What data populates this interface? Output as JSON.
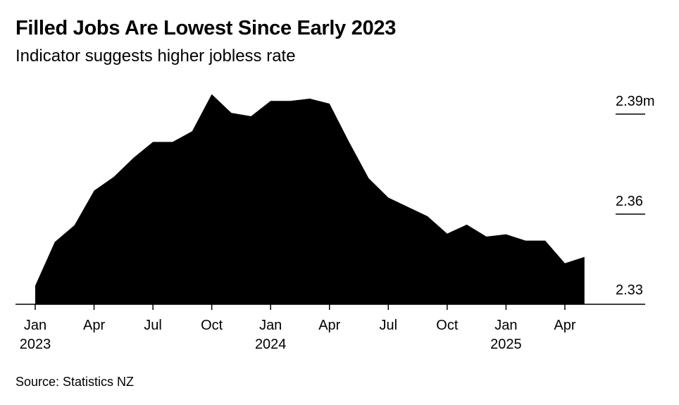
{
  "title": "Filled Jobs Are Lowest Since Early 2023",
  "subtitle": "Indicator suggests higher jobless rate",
  "source": "Source: Statistics NZ",
  "colors": {
    "area": "#000000",
    "axis": "#000000",
    "background": "#ffffff"
  },
  "chart_data": {
    "type": "area",
    "title": "Filled Jobs Are Lowest Since Early 2023",
    "subtitle": "Indicator suggests higher jobless rate",
    "xlabel": "",
    "ylabel": "",
    "ylim": [
      2.33,
      2.39
    ],
    "yticks": [
      {
        "value": 2.39,
        "label": "2.39m"
      },
      {
        "value": 2.36,
        "label": "2.36"
      },
      {
        "value": 2.33,
        "label": "2.33"
      }
    ],
    "xticks": [
      {
        "date": "2023-01",
        "month": "Jan",
        "year": "2023"
      },
      {
        "date": "2023-04",
        "month": "Apr",
        "year": ""
      },
      {
        "date": "2023-07",
        "month": "Jul",
        "year": ""
      },
      {
        "date": "2023-10",
        "month": "Oct",
        "year": ""
      },
      {
        "date": "2024-01",
        "month": "Jan",
        "year": "2024"
      },
      {
        "date": "2024-04",
        "month": "Apr",
        "year": ""
      },
      {
        "date": "2024-07",
        "month": "Jul",
        "year": ""
      },
      {
        "date": "2024-10",
        "month": "Oct",
        "year": ""
      },
      {
        "date": "2025-01",
        "month": "Jan",
        "year": "2025"
      },
      {
        "date": "2025-04",
        "month": "Apr",
        "year": ""
      }
    ],
    "grid": false,
    "legend": "none",
    "series": [
      {
        "x": [
          "2023-01",
          "2023-02",
          "2023-03",
          "2023-04",
          "2023-05",
          "2023-06",
          "2023-07",
          "2023-08",
          "2023-09",
          "2023-10",
          "2023-11",
          "2023-12",
          "2024-01",
          "2024-02",
          "2024-03",
          "2024-04",
          "2024-05",
          "2024-06",
          "2024-07",
          "2024-08",
          "2024-09",
          "2024-10",
          "2024-11",
          "2024-12",
          "2025-01",
          "2025-02",
          "2025-03",
          "2025-04",
          "2025-05"
        ],
        "values": [
          2.3356,
          2.3487,
          2.3537,
          2.3641,
          2.3682,
          2.3739,
          2.3787,
          2.3787,
          2.3819,
          2.393,
          2.3874,
          2.3864,
          2.391,
          2.391,
          2.3917,
          2.3902,
          2.3787,
          2.3678,
          2.362,
          2.3592,
          2.3564,
          2.3512,
          2.3539,
          2.3503,
          2.351,
          2.3491,
          2.3491,
          2.3423,
          2.3442
        ]
      }
    ]
  }
}
